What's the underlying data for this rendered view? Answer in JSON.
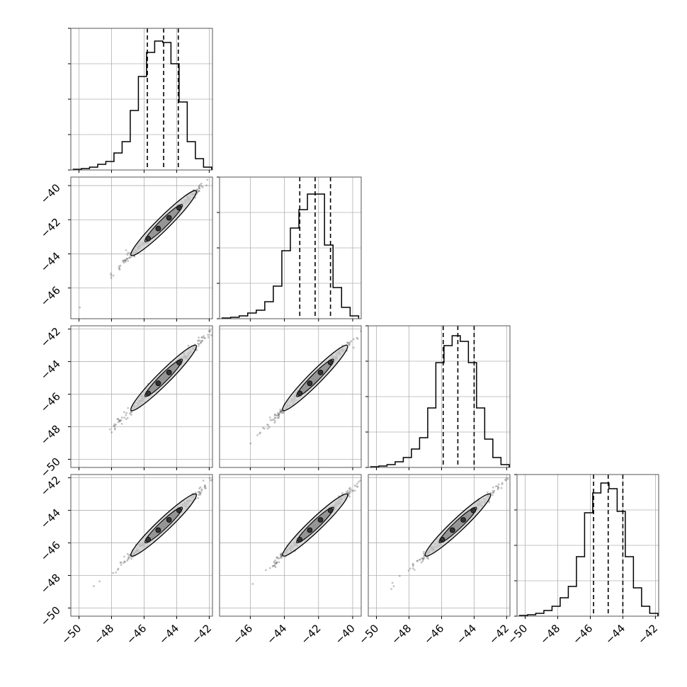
{
  "chart_data": {
    "type": "corner",
    "grid": true,
    "parameters": [
      {
        "range": [
          -50.5,
          -41.8
        ],
        "hist_ylim": [
          0,
          1.0
        ],
        "quantiles": [
          -45.8,
          -44.8,
          -43.9
        ],
        "hist_bins_x": [
          -50.1,
          -49.6,
          -49.1,
          -48.6,
          -48.1,
          -47.6,
          -47.1,
          -46.6,
          -46.1,
          -45.6,
          -45.1,
          -44.6,
          -44.1,
          -43.6,
          -43.1,
          -42.6,
          -42.1
        ],
        "hist_values": [
          0.005,
          0.01,
          0.02,
          0.04,
          0.06,
          0.12,
          0.2,
          0.42,
          0.66,
          0.83,
          0.91,
          0.9,
          0.75,
          0.48,
          0.2,
          0.08,
          0.02
        ]
      },
      {
        "range": [
          -47.8,
          -39.5
        ],
        "hist_ylim": [
          0,
          1.0
        ],
        "quantiles": [
          -43.1,
          -42.2,
          -41.3
        ],
        "hist_bins_x": [
          -47.4,
          -46.9,
          -46.4,
          -45.9,
          -45.4,
          -44.9,
          -44.4,
          -43.9,
          -43.4,
          -42.9,
          -42.4,
          -41.9,
          -41.4,
          -40.9,
          -40.4,
          -39.9
        ],
        "hist_values": [
          0.005,
          0.01,
          0.02,
          0.04,
          0.06,
          0.12,
          0.23,
          0.48,
          0.64,
          0.77,
          0.88,
          0.88,
          0.52,
          0.22,
          0.08,
          0.02
        ]
      },
      {
        "range": [
          -50.5,
          -41.8
        ],
        "hist_ylim": [
          0,
          1.0
        ],
        "quantiles": [
          -45.9,
          -45.0,
          -44.0
        ],
        "hist_bins_x": [
          -50.1,
          -49.6,
          -49.1,
          -48.6,
          -48.1,
          -47.6,
          -47.1,
          -46.6,
          -46.1,
          -45.6,
          -45.1,
          -44.6,
          -44.1,
          -43.6,
          -43.1,
          -42.6,
          -42.1
        ],
        "hist_values": [
          0.005,
          0.01,
          0.02,
          0.04,
          0.07,
          0.13,
          0.21,
          0.42,
          0.74,
          0.86,
          0.93,
          0.89,
          0.74,
          0.42,
          0.2,
          0.07,
          0.02
        ]
      },
      {
        "range": [
          -50.5,
          -41.8
        ],
        "hist_ylim": [
          0,
          1.0
        ],
        "quantiles": [
          -45.8,
          -44.9,
          -44.0
        ],
        "hist_bins_x": [
          -50.1,
          -49.6,
          -49.1,
          -48.6,
          -48.1,
          -47.6,
          -47.1,
          -46.6,
          -46.1,
          -45.6,
          -45.1,
          -44.6,
          -44.1,
          -43.6,
          -43.1,
          -42.6,
          -42.1
        ],
        "hist_values": [
          0.005,
          0.01,
          0.02,
          0.04,
          0.07,
          0.13,
          0.21,
          0.42,
          0.73,
          0.87,
          0.94,
          0.9,
          0.74,
          0.42,
          0.2,
          0.07,
          0.02
        ]
      }
    ],
    "x_ticks": [
      {
        "values": [
          -50,
          -48,
          -46,
          -44,
          -42
        ],
        "labels": [
          "−50",
          "−48",
          "−46",
          "−44",
          "−42"
        ]
      },
      {
        "values": [
          -46,
          -44,
          -42,
          -40
        ],
        "labels": [
          "−46",
          "−44",
          "−42",
          "−40"
        ]
      },
      {
        "values": [
          -50,
          -48,
          -46,
          -44,
          -42
        ],
        "labels": [
          "−50",
          "−48",
          "−46",
          "−44",
          "−42"
        ]
      },
      {
        "values": [
          -50,
          -48,
          -46,
          -44,
          -42
        ],
        "labels": [
          "−50",
          "−48",
          "−46",
          "−44",
          "−42"
        ]
      }
    ],
    "y_ticks": [
      null,
      {
        "values": [
          -40,
          -42,
          -44,
          -46
        ],
        "labels": [
          "−40",
          "−42",
          "−44",
          "−46"
        ]
      },
      {
        "values": [
          -42,
          -44,
          -46,
          -48,
          -50
        ],
        "labels": [
          "−42",
          "−44",
          "−46",
          "−48",
          "−50"
        ]
      },
      {
        "values": [
          -42,
          -44,
          -46,
          -48,
          -50
        ],
        "labels": [
          "−42",
          "−44",
          "−46",
          "−48",
          "−50"
        ]
      }
    ],
    "hist_y_ticks": [
      0.0,
      0.25,
      0.5,
      0.75,
      1.0
    ],
    "colors": {
      "frame": "#000000",
      "grid": "#b0b0b0",
      "hist": "#000000",
      "quantile": "#000000",
      "points": "#555555"
    }
  }
}
